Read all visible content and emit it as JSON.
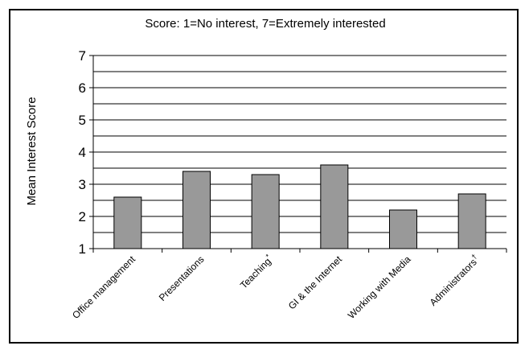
{
  "chart_data": {
    "type": "bar",
    "title": "Score:  1=No interest, 7=Extremely interested",
    "xlabel": "",
    "ylabel": "Mean Interest Score",
    "ylim": [
      1,
      7
    ],
    "yticks": [
      1,
      2,
      3,
      4,
      5,
      6,
      7
    ],
    "grid_step": 0.5,
    "grid": true,
    "categories": [
      "Office management",
      "Presentations",
      "Teaching*",
      "GI & the Internet",
      "Working with Media",
      "Administrators†"
    ],
    "category_labels": [
      {
        "text": "Office management",
        "sup": ""
      },
      {
        "text": "Presentations",
        "sup": ""
      },
      {
        "text": "Teaching",
        "sup": "*"
      },
      {
        "text": "GI & the Internet",
        "sup": ""
      },
      {
        "text": "Working with Media",
        "sup": ""
      },
      {
        "text": "Administrators",
        "sup": "†"
      }
    ],
    "values": [
      2.6,
      3.4,
      3.3,
      3.6,
      2.2,
      2.7
    ],
    "bar_color": "#999999"
  }
}
